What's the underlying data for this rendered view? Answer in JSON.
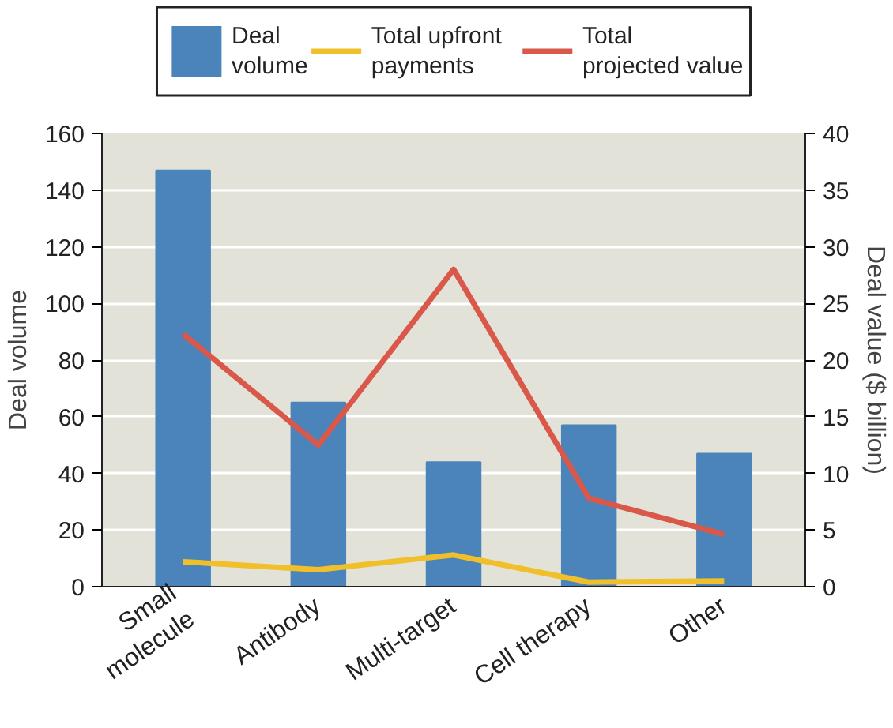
{
  "chart_data": {
    "type": "bar",
    "categories": [
      "Small\nmolecule",
      "Antibody",
      "Multi-target",
      "Cell therapy",
      "Other"
    ],
    "ylabel": "Deal volume",
    "y2label": "Deal value ($ billion)",
    "ylim": [
      0,
      160
    ],
    "yticks": [
      0,
      20,
      40,
      60,
      80,
      100,
      120,
      140,
      160
    ],
    "y2lim": [
      0,
      40
    ],
    "y2ticks": [
      0,
      5,
      10,
      15,
      20,
      25,
      30,
      35,
      40
    ],
    "grid": "y",
    "legend": "top",
    "series": [
      {
        "name": "Deal\nvolume",
        "color": "#4a84ba",
        "values": [
          147,
          65,
          44,
          57,
          47
        ]
      },
      {
        "name": "Total upfront\npayments",
        "type": "line",
        "axis": "y2",
        "color": "#f0bf2a",
        "values": [
          2.2,
          1.5,
          2.8,
          0.4,
          0.5
        ]
      },
      {
        "name": "Total\nprojected value",
        "type": "line",
        "axis": "y2",
        "color": "#d9584a",
        "values": [
          22.3,
          12.5,
          28,
          7.8,
          4.6
        ]
      }
    ]
  }
}
